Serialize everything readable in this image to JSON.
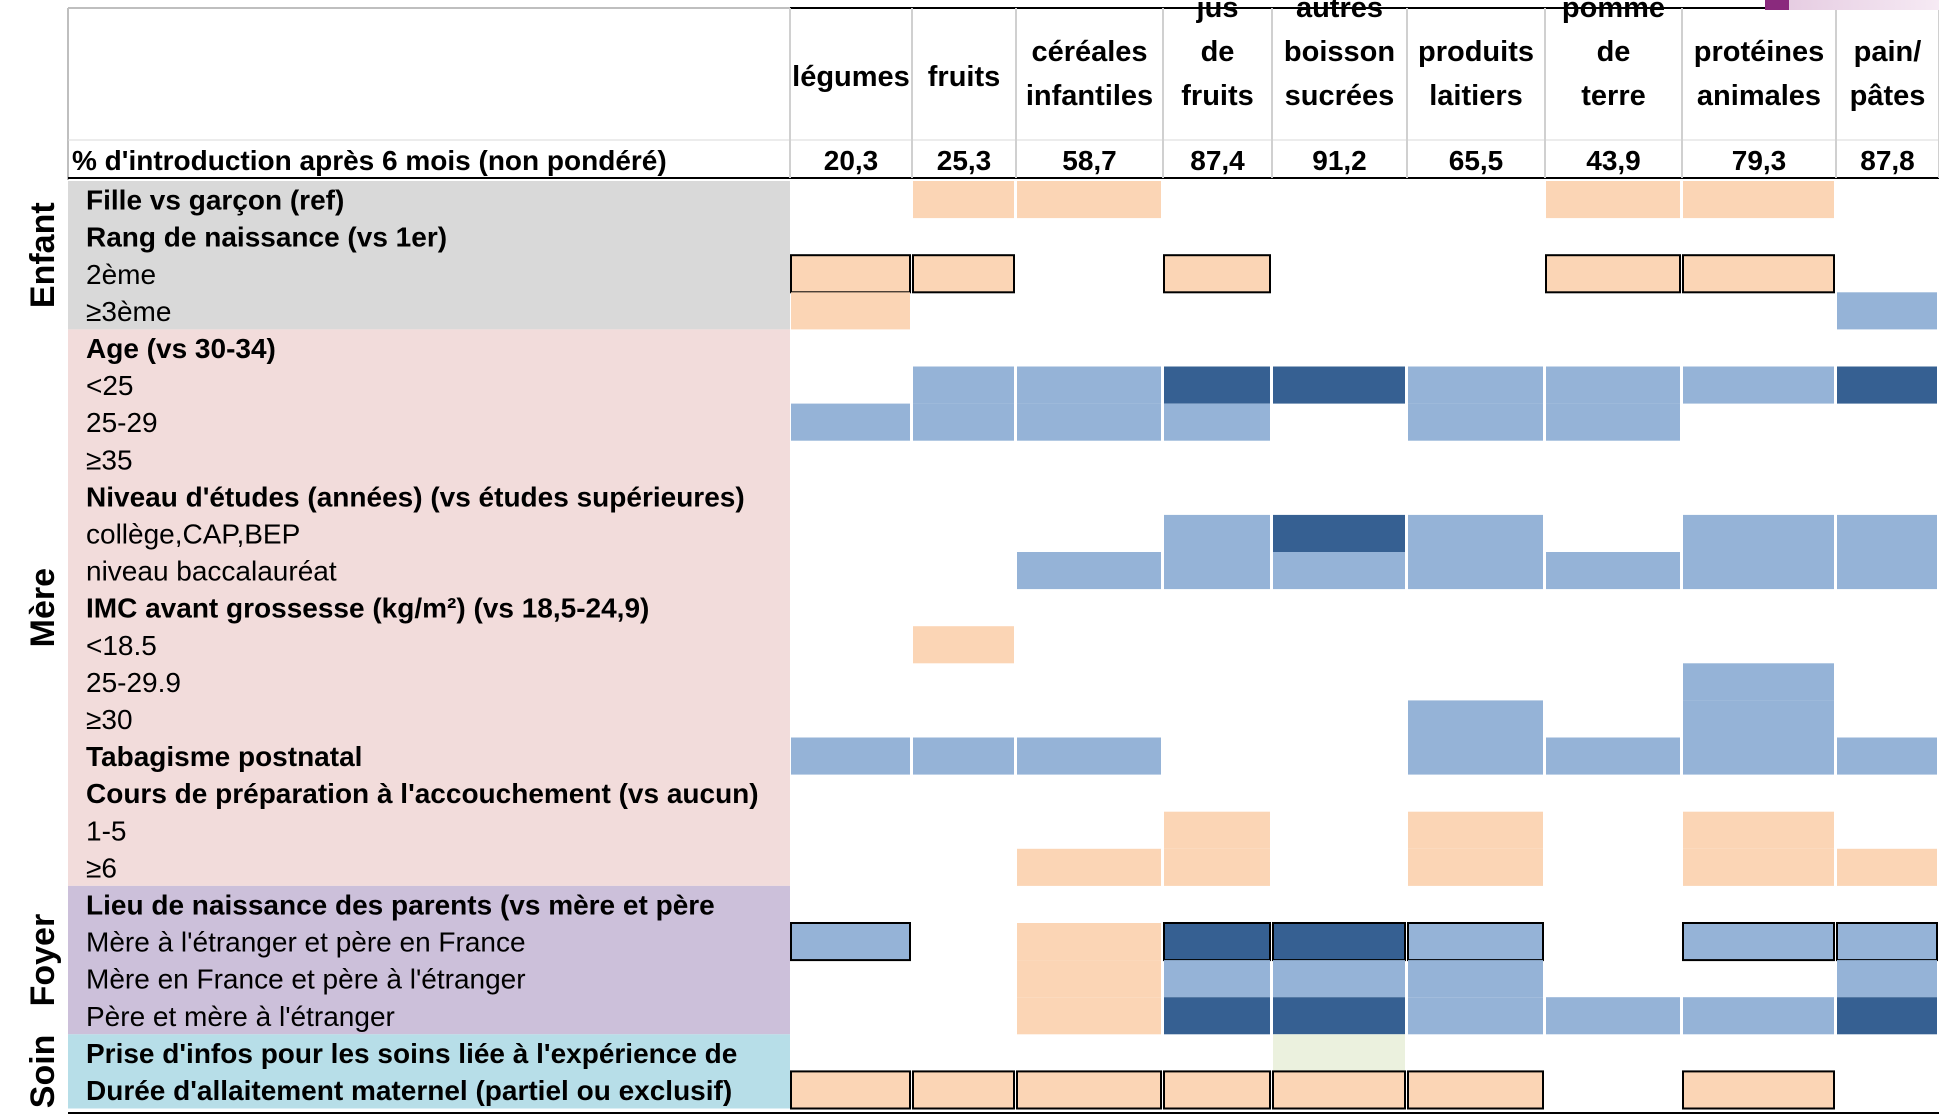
{
  "chart_data": {
    "type": "heatmap",
    "header_row_label": "% d'introduction après 6 mois (non pondéré)",
    "columns": [
      {
        "label": "légumes",
        "percent": "20,3"
      },
      {
        "label": "fruits",
        "percent": "25,3"
      },
      {
        "label": "céréales infantiles",
        "percent": "58,7"
      },
      {
        "label": "jus de fruits",
        "percent": "87,4"
      },
      {
        "label": "autres boisson sucrées",
        "percent": "91,2"
      },
      {
        "label": "produits laitiers",
        "percent": "65,5"
      },
      {
        "label": "pomme de terre",
        "percent": "43,9"
      },
      {
        "label": "protéines animales",
        "percent": "79,3"
      },
      {
        "label": "pain/ pâtes",
        "percent": "87,8"
      }
    ],
    "groups": [
      {
        "name": "Enfant",
        "color": "#d9d9d9",
        "rows": [
          0,
          3
        ]
      },
      {
        "name": "Mère",
        "color": "#f2dcdb",
        "rows": [
          4,
          18
        ]
      },
      {
        "name": "Foyer",
        "color": "#ccc0da",
        "rows": [
          19,
          22
        ]
      },
      {
        "name": "Soin",
        "color": "#b7dee8",
        "rows": [
          23,
          24
        ]
      }
    ],
    "rows": [
      {
        "label": "Fille vs garçon (ref)",
        "bold": true
      },
      {
        "label": "Rang de naissance (vs 1er)",
        "bold": true
      },
      {
        "label": "2ème",
        "bold": false
      },
      {
        "label": "≥3ème",
        "bold": false
      },
      {
        "label": "Age (vs 30-34)",
        "bold": true
      },
      {
        "label": "<25",
        "bold": false
      },
      {
        "label": "25-29",
        "bold": false
      },
      {
        "label": "≥35",
        "bold": false
      },
      {
        "label": "Niveau d'études (années) (vs études supérieures)",
        "bold": true
      },
      {
        "label": "collège,CAP,BEP",
        "bold": false
      },
      {
        "label": "niveau baccalauréat",
        "bold": false
      },
      {
        "label": "IMC avant grossesse (kg/m²) (vs 18,5-24,9)",
        "bold": true
      },
      {
        "label": "<18.5",
        "bold": false
      },
      {
        "label": "25-29.9",
        "bold": false
      },
      {
        "label": "≥30",
        "bold": false
      },
      {
        "label": "Tabagisme postnatal",
        "bold": true
      },
      {
        "label": "Cours de préparation à l'accouchement (vs aucun)",
        "bold": true
      },
      {
        "label": "1-5",
        "bold": false
      },
      {
        "label": "≥6",
        "bold": false
      },
      {
        "label": "Lieu de naissance des parents (vs mère et père",
        "bold": true
      },
      {
        "label": "Mère à l'étranger et père en France",
        "bold": false
      },
      {
        "label": "Mère en France et père à l'étranger",
        "bold": false
      },
      {
        "label": "Père et mère à l'étranger",
        "bold": false
      },
      {
        "label": "Prise d'infos pour les soins liée à l'expérience  de",
        "bold": true
      },
      {
        "label": "Durée d'allaitement maternel (partiel ou exclusif)",
        "bold": true
      }
    ],
    "cell_colors": {
      "peach": "#fbd5b5",
      "light_blue": "#95b3d7",
      "dark_blue": "#366092",
      "pale_green": "#ebf1de"
    },
    "cells": [
      {
        "row": 0,
        "col": 1,
        "value": "peach"
      },
      {
        "row": 0,
        "col": 2,
        "value": "peach"
      },
      {
        "row": 0,
        "col": 6,
        "value": "peach"
      },
      {
        "row": 0,
        "col": 7,
        "value": "peach"
      },
      {
        "row": 2,
        "col": 0,
        "value": "peach",
        "outlined": true
      },
      {
        "row": 2,
        "col": 1,
        "value": "peach",
        "outlined": true
      },
      {
        "row": 2,
        "col": 3,
        "value": "peach",
        "outlined": true
      },
      {
        "row": 2,
        "col": 6,
        "value": "peach",
        "outlined": true
      },
      {
        "row": 2,
        "col": 7,
        "value": "peach",
        "outlined": true
      },
      {
        "row": 3,
        "col": 0,
        "value": "peach"
      },
      {
        "row": 3,
        "col": 8,
        "value": "light_blue"
      },
      {
        "row": 5,
        "col": 1,
        "value": "light_blue"
      },
      {
        "row": 5,
        "col": 2,
        "value": "light_blue"
      },
      {
        "row": 5,
        "col": 3,
        "value": "dark_blue"
      },
      {
        "row": 5,
        "col": 4,
        "value": "dark_blue"
      },
      {
        "row": 5,
        "col": 5,
        "value": "light_blue"
      },
      {
        "row": 5,
        "col": 6,
        "value": "light_blue"
      },
      {
        "row": 5,
        "col": 7,
        "value": "light_blue"
      },
      {
        "row": 5,
        "col": 8,
        "value": "dark_blue"
      },
      {
        "row": 6,
        "col": 0,
        "value": "light_blue"
      },
      {
        "row": 6,
        "col": 1,
        "value": "light_blue"
      },
      {
        "row": 6,
        "col": 2,
        "value": "light_blue"
      },
      {
        "row": 6,
        "col": 3,
        "value": "light_blue"
      },
      {
        "row": 6,
        "col": 5,
        "value": "light_blue"
      },
      {
        "row": 6,
        "col": 6,
        "value": "light_blue"
      },
      {
        "row": 9,
        "col": 3,
        "value": "light_blue"
      },
      {
        "row": 9,
        "col": 4,
        "value": "dark_blue"
      },
      {
        "row": 9,
        "col": 5,
        "value": "light_blue"
      },
      {
        "row": 9,
        "col": 7,
        "value": "light_blue"
      },
      {
        "row": 9,
        "col": 8,
        "value": "light_blue"
      },
      {
        "row": 10,
        "col": 2,
        "value": "light_blue"
      },
      {
        "row": 10,
        "col": 3,
        "value": "light_blue"
      },
      {
        "row": 10,
        "col": 4,
        "value": "light_blue"
      },
      {
        "row": 10,
        "col": 5,
        "value": "light_blue"
      },
      {
        "row": 10,
        "col": 6,
        "value": "light_blue"
      },
      {
        "row": 10,
        "col": 7,
        "value": "light_blue"
      },
      {
        "row": 10,
        "col": 8,
        "value": "light_blue"
      },
      {
        "row": 12,
        "col": 1,
        "value": "peach"
      },
      {
        "row": 13,
        "col": 7,
        "value": "light_blue"
      },
      {
        "row": 14,
        "col": 5,
        "value": "light_blue"
      },
      {
        "row": 14,
        "col": 7,
        "value": "light_blue"
      },
      {
        "row": 15,
        "col": 0,
        "value": "light_blue"
      },
      {
        "row": 15,
        "col": 1,
        "value": "light_blue"
      },
      {
        "row": 15,
        "col": 2,
        "value": "light_blue"
      },
      {
        "row": 15,
        "col": 5,
        "value": "light_blue"
      },
      {
        "row": 15,
        "col": 6,
        "value": "light_blue"
      },
      {
        "row": 15,
        "col": 7,
        "value": "light_blue"
      },
      {
        "row": 15,
        "col": 8,
        "value": "light_blue"
      },
      {
        "row": 17,
        "col": 3,
        "value": "peach"
      },
      {
        "row": 17,
        "col": 5,
        "value": "peach"
      },
      {
        "row": 17,
        "col": 7,
        "value": "peach"
      },
      {
        "row": 18,
        "col": 2,
        "value": "peach"
      },
      {
        "row": 18,
        "col": 3,
        "value": "peach"
      },
      {
        "row": 18,
        "col": 5,
        "value": "peach"
      },
      {
        "row": 18,
        "col": 7,
        "value": "peach"
      },
      {
        "row": 18,
        "col": 8,
        "value": "peach"
      },
      {
        "row": 20,
        "col": 0,
        "value": "light_blue",
        "outlined": true
      },
      {
        "row": 20,
        "col": 2,
        "value": "peach"
      },
      {
        "row": 20,
        "col": 3,
        "value": "dark_blue",
        "outlined": true
      },
      {
        "row": 20,
        "col": 4,
        "value": "dark_blue",
        "outlined": true
      },
      {
        "row": 20,
        "col": 5,
        "value": "light_blue",
        "outlined": true
      },
      {
        "row": 20,
        "col": 7,
        "value": "light_blue",
        "outlined": true
      },
      {
        "row": 20,
        "col": 8,
        "value": "light_blue",
        "outlined": true
      },
      {
        "row": 21,
        "col": 2,
        "value": "peach"
      },
      {
        "row": 21,
        "col": 3,
        "value": "light_blue"
      },
      {
        "row": 21,
        "col": 4,
        "value": "light_blue"
      },
      {
        "row": 21,
        "col": 5,
        "value": "light_blue"
      },
      {
        "row": 21,
        "col": 8,
        "value": "light_blue"
      },
      {
        "row": 22,
        "col": 2,
        "value": "peach"
      },
      {
        "row": 22,
        "col": 3,
        "value": "dark_blue"
      },
      {
        "row": 22,
        "col": 4,
        "value": "dark_blue"
      },
      {
        "row": 22,
        "col": 5,
        "value": "light_blue"
      },
      {
        "row": 22,
        "col": 6,
        "value": "light_blue"
      },
      {
        "row": 22,
        "col": 7,
        "value": "light_blue"
      },
      {
        "row": 22,
        "col": 8,
        "value": "dark_blue"
      },
      {
        "row": 23,
        "col": 4,
        "value": "pale_green"
      },
      {
        "row": 24,
        "col": 0,
        "value": "peach",
        "outlined": true
      },
      {
        "row": 24,
        "col": 1,
        "value": "peach",
        "outlined": true
      },
      {
        "row": 24,
        "col": 2,
        "value": "peach",
        "outlined": true
      },
      {
        "row": 24,
        "col": 3,
        "value": "peach",
        "outlined": true
      },
      {
        "row": 24,
        "col": 4,
        "value": "peach",
        "outlined": true
      },
      {
        "row": 24,
        "col": 5,
        "value": "peach",
        "outlined": true
      },
      {
        "row": 24,
        "col": 7,
        "value": "peach",
        "outlined": true
      }
    ]
  }
}
